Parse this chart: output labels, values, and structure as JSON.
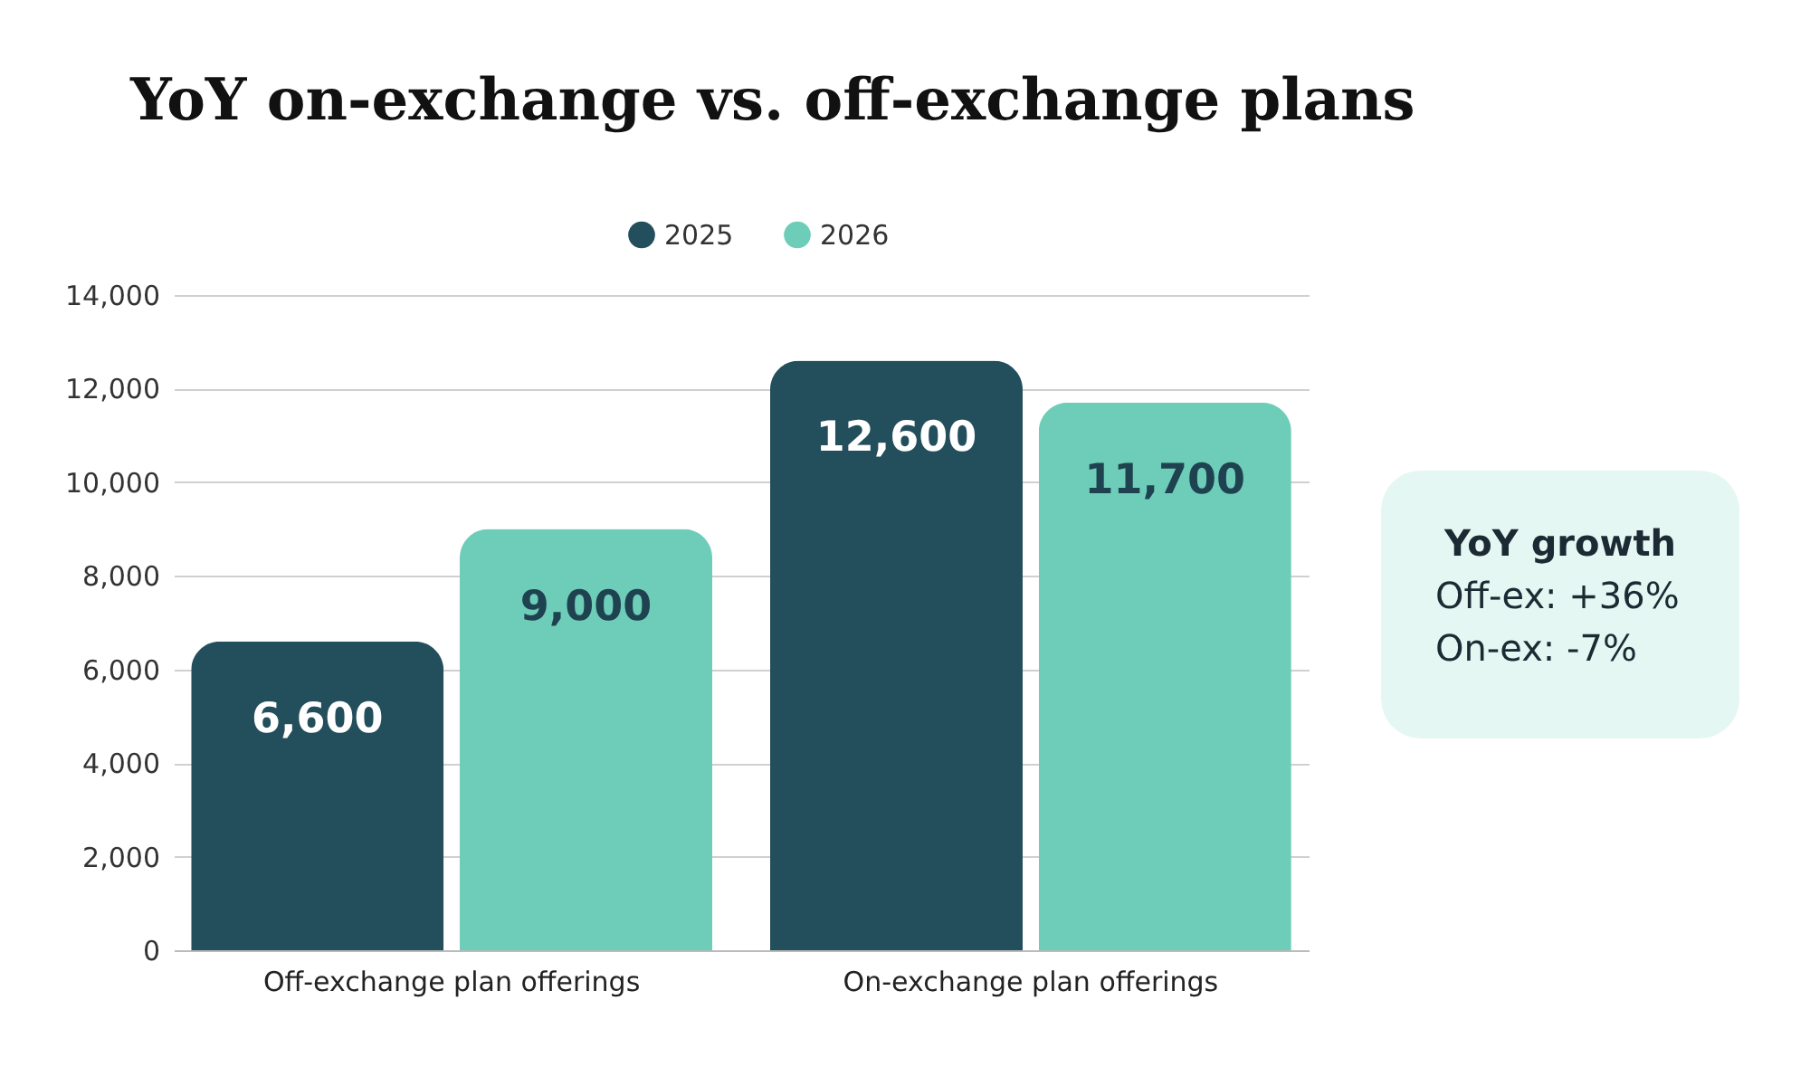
{
  "chart_data": {
    "type": "bar",
    "title": "YoY on-exchange vs. off-exchange plans",
    "categories": [
      "Off-exchange plan offerings",
      "On-exchange plan offerings"
    ],
    "series": [
      {
        "name": "2025",
        "color": "#234e5c",
        "values": [
          6600,
          12600
        ],
        "value_labels": [
          "6,600",
          "12,600"
        ]
      },
      {
        "name": "2026",
        "color": "#6ecdb8",
        "values": [
          9000,
          11700
        ],
        "value_labels": [
          "9,000",
          "11,700"
        ]
      }
    ],
    "ylim": [
      0,
      14000
    ],
    "yticks": [
      0,
      {
        "value": 2000,
        "label": "2,000"
      },
      {
        "value": 4000,
        "label": "4,000"
      },
      {
        "value": 6000,
        "label": "6,000"
      },
      {
        "value": 8000,
        "label": "8,000"
      },
      {
        "value": 10000,
        "label": "10,000"
      },
      {
        "value": 12000,
        "label": "12,000"
      },
      {
        "value": 14000,
        "label": "14,000"
      }
    ],
    "grid": "y",
    "legend": "top",
    "annotations": [
      "YoY growth",
      "Off-ex: +36%",
      "On-ex: -7%"
    ]
  }
}
